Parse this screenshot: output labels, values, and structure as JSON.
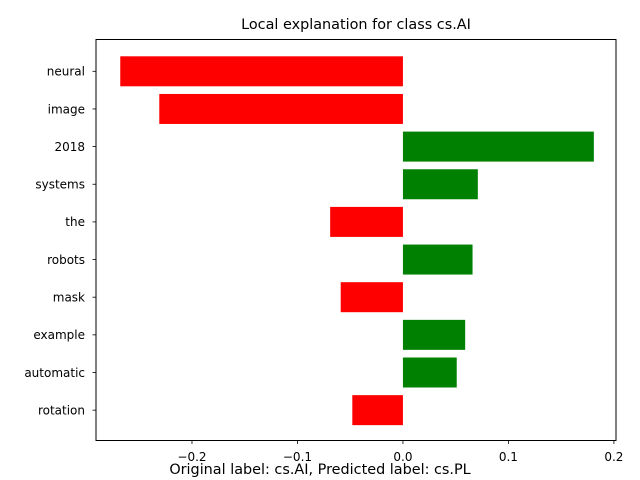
{
  "chart_data": {
    "type": "bar",
    "orientation": "horizontal",
    "title": "Local explanation for class cs.AI",
    "caption": "Original label: cs.AI, Predicted label: cs.PL",
    "categories": [
      "neural",
      "image",
      "2018",
      "systems",
      "the",
      "robots",
      "mask",
      "example",
      "automatic",
      "rotation"
    ],
    "values": [
      -0.268,
      -0.231,
      0.181,
      0.071,
      -0.069,
      0.066,
      -0.059,
      0.059,
      0.051,
      -0.048
    ],
    "xlim": [
      -0.291,
      0.202
    ],
    "xticks": [
      -0.2,
      -0.1,
      0.0,
      0.1,
      0.2
    ],
    "xtick_labels": [
      "−0.2",
      "−0.1",
      "0.0",
      "0.1",
      "0.2"
    ],
    "xlabel": "",
    "ylabel": "",
    "grid": false,
    "colors": {
      "positive": "#008000",
      "negative": "#ff0000"
    }
  }
}
